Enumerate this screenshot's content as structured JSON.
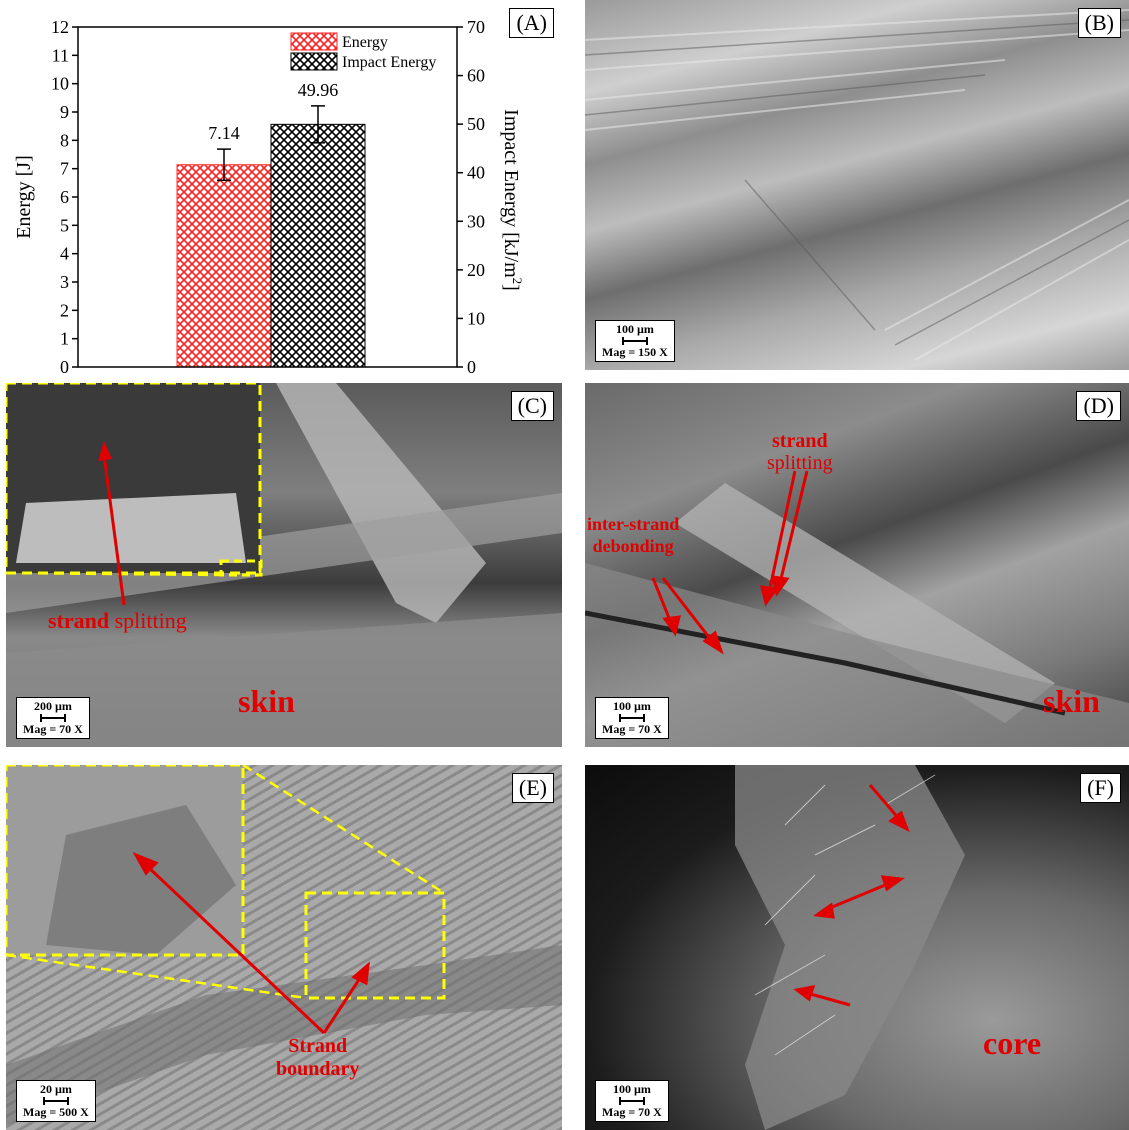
{
  "panels": {
    "A": {
      "label": "(A)"
    },
    "B": {
      "label": "(B)",
      "scale_value": "100 µm",
      "magnification": "Mag = 150 X"
    },
    "C": {
      "label": "(C)",
      "scale_value": "200 µm",
      "magnification": "Mag = 70 X",
      "annotation_strand": "strand",
      "annotation_splitting": " splitting",
      "region": "skin"
    },
    "D": {
      "label": "(D)",
      "scale_value": "100 µm",
      "magnification": "Mag = 70 X",
      "annotation_split_1": "strand",
      "annotation_split_2": "splitting",
      "annotation_debond_1": "inter-strand",
      "annotation_debond_2": "debonding",
      "region": "skin"
    },
    "E": {
      "label": "(E)",
      "scale_value": "20 µm",
      "magnification": "Mag = 500 X",
      "annotation_1": "Strand",
      "annotation_2": "boundary"
    },
    "F": {
      "label": "(F)",
      "scale_value": "100 µm",
      "magnification": "Mag = 70 X",
      "region": "core"
    }
  },
  "chart_data": {
    "type": "bar",
    "categories": [
      "Energy",
      "Impact Energy"
    ],
    "series": [
      {
        "name": "Energy",
        "value": 7.14,
        "error": 0.55,
        "axis": "left",
        "color": "#ff3030",
        "value_label": "7.14"
      },
      {
        "name": "Impact Energy",
        "value": 49.96,
        "error": 3.8,
        "axis": "right",
        "color": "#000000",
        "value_label": "49.96"
      }
    ],
    "ylabel_left": "Energy [J]",
    "ylabel_right": "Impact Energy [kJ/m",
    "ylabel_right_sup": "2",
    "ylabel_right_end": "]",
    "ylim_left": [
      0,
      12
    ],
    "ylim_right": [
      0,
      70
    ],
    "yticks_left": [
      "0",
      "1",
      "2",
      "3",
      "4",
      "5",
      "6",
      "7",
      "8",
      "9",
      "10",
      "11",
      "12"
    ],
    "yticks_right": [
      "0",
      "10",
      "20",
      "30",
      "40",
      "50",
      "60",
      "70"
    ],
    "legend_position": "top-right",
    "fill": "cross-hatch"
  }
}
